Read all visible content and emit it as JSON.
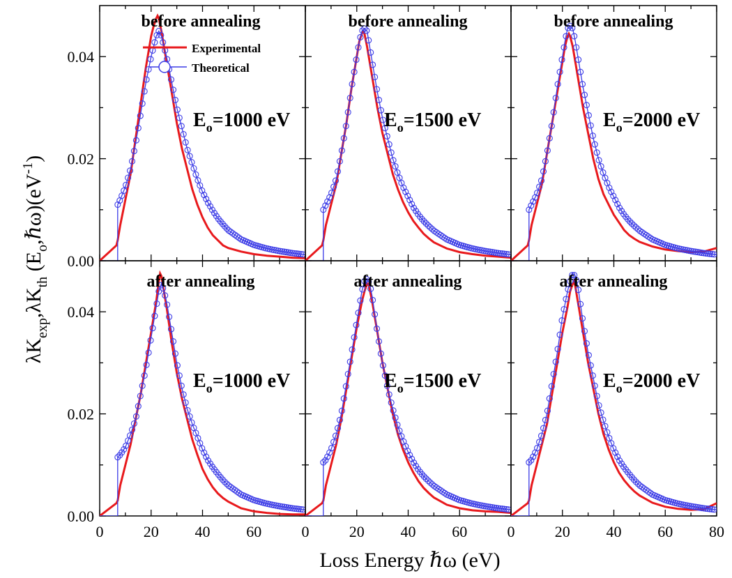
{
  "figure": {
    "xlabel": "Loss Energy ℏω (eV)",
    "ylabel_parts": [
      "λK",
      "exp",
      ",λK",
      "th",
      " (E",
      "o",
      ",ℏω)(eV",
      "-1",
      ")"
    ],
    "legend": {
      "experimental": "Experimental",
      "theoretical": "Theoretical"
    },
    "colors": {
      "experimental": "#e8191c",
      "theoretical": "#3a3ae6",
      "frame": "#000000"
    }
  },
  "chart_data": [
    {
      "type": "line",
      "row": "top",
      "annotation": "before annealing",
      "energy_label": "E",
      "energy_sub": "o",
      "energy_value": "=1000 eV",
      "xlim": [
        0,
        80
      ],
      "ylim": [
        0,
        0.05
      ],
      "xticks": [
        "0",
        "20",
        "40",
        "60"
      ],
      "yticks": [
        "0.00",
        "0.02",
        "0.04"
      ],
      "series": [
        {
          "name": "Experimental",
          "x": [
            0,
            6.5,
            7,
            8,
            10,
            12,
            14,
            16,
            18,
            20,
            21,
            22,
            22.5,
            23,
            24,
            26,
            28,
            30,
            32,
            34,
            36,
            38,
            40,
            42,
            44,
            46,
            48,
            50,
            55,
            60,
            65,
            70,
            75,
            80
          ],
          "y": [
            0.0,
            0.003,
            0.004,
            0.007,
            0.012,
            0.017,
            0.024,
            0.031,
            0.038,
            0.044,
            0.046,
            0.0475,
            0.048,
            0.0475,
            0.045,
            0.039,
            0.033,
            0.027,
            0.022,
            0.018,
            0.014,
            0.011,
            0.0085,
            0.0065,
            0.005,
            0.004,
            0.003,
            0.0025,
            0.0018,
            0.0013,
            0.001,
            0.0008,
            0.0006,
            0.0005
          ]
        },
        {
          "name": "Theoretical",
          "x": [
            7,
            8,
            10,
            12,
            14,
            16,
            18,
            20,
            21,
            22,
            23,
            24,
            25,
            26,
            28,
            30,
            32,
            34,
            36,
            38,
            40,
            42,
            44,
            46,
            48,
            50,
            55,
            60,
            65,
            70,
            75,
            80
          ],
          "y": [
            0.011,
            0.012,
            0.0145,
            0.018,
            0.023,
            0.029,
            0.035,
            0.04,
            0.042,
            0.044,
            0.045,
            0.044,
            0.042,
            0.04,
            0.035,
            0.03,
            0.026,
            0.022,
            0.019,
            0.016,
            0.0135,
            0.0115,
            0.0098,
            0.0083,
            0.0071,
            0.006,
            0.0042,
            0.0031,
            0.0024,
            0.0019,
            0.0015,
            0.0012
          ]
        }
      ]
    },
    {
      "type": "line",
      "row": "top",
      "annotation": "before annealing",
      "energy_label": "E",
      "energy_sub": "o",
      "energy_value": "=1500 eV",
      "xlim": [
        0,
        80
      ],
      "ylim": [
        0,
        0.05
      ],
      "xticks": [
        "0",
        "20",
        "40",
        "60"
      ],
      "yticks": [],
      "series": [
        {
          "name": "Experimental",
          "x": [
            0,
            6.5,
            7,
            8,
            10,
            12,
            14,
            16,
            18,
            20,
            21,
            22,
            22.5,
            23,
            24,
            26,
            28,
            30,
            32,
            34,
            36,
            38,
            40,
            42,
            44,
            46,
            48,
            50,
            55,
            60,
            65,
            70,
            75,
            80
          ],
          "y": [
            0.0,
            0.003,
            0.004,
            0.007,
            0.011,
            0.015,
            0.021,
            0.027,
            0.034,
            0.04,
            0.043,
            0.0445,
            0.045,
            0.0445,
            0.042,
            0.036,
            0.03,
            0.025,
            0.021,
            0.017,
            0.014,
            0.0115,
            0.0095,
            0.0078,
            0.0065,
            0.0053,
            0.0044,
            0.0036,
            0.0024,
            0.0017,
            0.0013,
            0.001,
            0.0008,
            0.0006
          ]
        },
        {
          "name": "Theoretical",
          "x": [
            7,
            8,
            10,
            12,
            14,
            16,
            18,
            20,
            21,
            22,
            23,
            24,
            25,
            26,
            28,
            30,
            32,
            34,
            36,
            38,
            40,
            42,
            44,
            46,
            48,
            50,
            55,
            60,
            65,
            70,
            75,
            80
          ],
          "y": [
            0.01,
            0.011,
            0.013,
            0.016,
            0.021,
            0.027,
            0.034,
            0.04,
            0.043,
            0.045,
            0.0455,
            0.045,
            0.042,
            0.039,
            0.033,
            0.028,
            0.024,
            0.02,
            0.017,
            0.0145,
            0.0125,
            0.0105,
            0.009,
            0.0078,
            0.0068,
            0.0059,
            0.0042,
            0.0031,
            0.0024,
            0.0019,
            0.0015,
            0.0012
          ]
        }
      ]
    },
    {
      "type": "line",
      "row": "top",
      "annotation": "before annealing",
      "energy_label": "E",
      "energy_sub": "o",
      "energy_value": "=2000 eV",
      "xlim": [
        0,
        80
      ],
      "ylim": [
        0,
        0.05
      ],
      "xticks": [
        "0",
        "20",
        "40",
        "60"
      ],
      "yticks": [],
      "series": [
        {
          "name": "Experimental",
          "x": [
            0,
            6.5,
            7,
            8,
            10,
            12,
            14,
            16,
            18,
            20,
            21,
            22,
            22.5,
            23,
            24,
            26,
            28,
            30,
            32,
            34,
            36,
            38,
            40,
            42,
            44,
            46,
            48,
            50,
            55,
            60,
            65,
            70,
            75,
            80
          ],
          "y": [
            0.0,
            0.003,
            0.004,
            0.007,
            0.011,
            0.015,
            0.021,
            0.027,
            0.033,
            0.039,
            0.042,
            0.044,
            0.0445,
            0.044,
            0.042,
            0.036,
            0.03,
            0.025,
            0.02,
            0.016,
            0.013,
            0.011,
            0.009,
            0.0075,
            0.006,
            0.005,
            0.0043,
            0.0037,
            0.0028,
            0.0022,
            0.0019,
            0.0017,
            0.0018,
            0.0025
          ]
        },
        {
          "name": "Theoretical",
          "x": [
            7,
            8,
            10,
            12,
            14,
            16,
            18,
            20,
            21,
            22,
            23,
            24,
            25,
            26,
            28,
            30,
            32,
            34,
            36,
            38,
            40,
            42,
            44,
            46,
            48,
            50,
            55,
            60,
            65,
            70,
            75,
            80
          ],
          "y": [
            0.01,
            0.011,
            0.013,
            0.016,
            0.021,
            0.027,
            0.034,
            0.04,
            0.043,
            0.0455,
            0.046,
            0.0455,
            0.043,
            0.04,
            0.034,
            0.029,
            0.024,
            0.02,
            0.017,
            0.0145,
            0.0125,
            0.0105,
            0.009,
            0.0078,
            0.0068,
            0.0059,
            0.0042,
            0.0031,
            0.0024,
            0.0019,
            0.0015,
            0.0012
          ]
        }
      ]
    },
    {
      "type": "line",
      "row": "bottom",
      "annotation": "after annealing",
      "energy_label": "E",
      "energy_sub": "o",
      "energy_value": "=1000 eV",
      "xlim": [
        0,
        80
      ],
      "ylim": [
        0,
        0.05
      ],
      "xticks": [
        "0",
        "20",
        "40",
        "60"
      ],
      "yticks": [
        "0.00",
        "0.02",
        "0.04"
      ],
      "series": [
        {
          "name": "Experimental",
          "x": [
            0,
            6.5,
            7,
            8,
            10,
            12,
            14,
            16,
            18,
            20,
            21,
            22,
            23,
            23.5,
            24,
            25,
            26,
            28,
            30,
            32,
            34,
            36,
            38,
            40,
            42,
            44,
            46,
            48,
            50,
            55,
            60,
            65,
            70,
            75,
            80
          ],
          "y": [
            0.0,
            0.0025,
            0.003,
            0.006,
            0.01,
            0.014,
            0.019,
            0.024,
            0.03,
            0.036,
            0.039,
            0.042,
            0.046,
            0.0475,
            0.047,
            0.044,
            0.041,
            0.034,
            0.028,
            0.023,
            0.019,
            0.015,
            0.012,
            0.0092,
            0.0072,
            0.0056,
            0.0044,
            0.0035,
            0.0028,
            0.0015,
            0.0009,
            0.0006,
            0.0004,
            0.0003,
            0.0003
          ]
        },
        {
          "name": "Theoretical",
          "x": [
            7,
            8,
            10,
            12,
            14,
            16,
            18,
            20,
            22,
            23,
            24,
            25,
            26,
            28,
            30,
            32,
            34,
            36,
            38,
            40,
            42,
            44,
            46,
            48,
            50,
            55,
            60,
            65,
            70,
            75,
            80
          ],
          "y": [
            0.0115,
            0.012,
            0.0135,
            0.016,
            0.019,
            0.024,
            0.029,
            0.035,
            0.041,
            0.044,
            0.0455,
            0.044,
            0.042,
            0.036,
            0.03,
            0.025,
            0.021,
            0.018,
            0.0155,
            0.013,
            0.011,
            0.0095,
            0.0082,
            0.007,
            0.006,
            0.0042,
            0.0031,
            0.0024,
            0.0019,
            0.0015,
            0.0012
          ]
        }
      ]
    },
    {
      "type": "line",
      "row": "bottom",
      "annotation": "after annealing",
      "energy_label": "E",
      "energy_sub": "o",
      "energy_value": "=1500 eV",
      "xlim": [
        0,
        80
      ],
      "ylim": [
        0,
        0.05
      ],
      "xticks": [
        "0",
        "20",
        "40",
        "60"
      ],
      "yticks": [],
      "series": [
        {
          "name": "Experimental",
          "x": [
            0,
            6.5,
            7,
            8,
            10,
            12,
            14,
            16,
            18,
            20,
            22,
            23,
            24,
            24.5,
            25,
            26,
            28,
            30,
            32,
            34,
            36,
            38,
            40,
            42,
            44,
            46,
            48,
            50,
            55,
            60,
            65,
            70,
            75,
            80
          ],
          "y": [
            0.0,
            0.0025,
            0.003,
            0.006,
            0.01,
            0.014,
            0.019,
            0.025,
            0.031,
            0.037,
            0.042,
            0.044,
            0.0455,
            0.0455,
            0.0445,
            0.042,
            0.036,
            0.03,
            0.025,
            0.02,
            0.016,
            0.013,
            0.0105,
            0.0085,
            0.0068,
            0.0055,
            0.0045,
            0.0036,
            0.0022,
            0.0015,
            0.0011,
            0.0009,
            0.0008,
            0.0006
          ]
        },
        {
          "name": "Theoretical",
          "x": [
            7,
            8,
            10,
            12,
            14,
            16,
            18,
            20,
            22,
            23,
            24,
            25,
            26,
            28,
            30,
            32,
            34,
            36,
            38,
            40,
            42,
            44,
            46,
            48,
            50,
            55,
            60,
            65,
            70,
            75,
            80
          ],
          "y": [
            0.0105,
            0.011,
            0.013,
            0.016,
            0.02,
            0.026,
            0.032,
            0.038,
            0.044,
            0.046,
            0.0465,
            0.0455,
            0.043,
            0.036,
            0.03,
            0.025,
            0.021,
            0.0175,
            0.0148,
            0.0125,
            0.0106,
            0.009,
            0.0078,
            0.0068,
            0.0059,
            0.0042,
            0.0031,
            0.0024,
            0.0019,
            0.0015,
            0.0012
          ]
        }
      ]
    },
    {
      "type": "line",
      "row": "bottom",
      "annotation": "after annealing",
      "energy_label": "E",
      "energy_sub": "o",
      "energy_value": "=2000 eV",
      "xlim": [
        0,
        80
      ],
      "ylim": [
        0,
        0.05
      ],
      "xticks": [
        "0",
        "20",
        "40",
        "60",
        "80"
      ],
      "yticks": [],
      "series": [
        {
          "name": "Experimental",
          "x": [
            0,
            6.5,
            7,
            8,
            10,
            12,
            14,
            16,
            18,
            20,
            22,
            23,
            24,
            24.5,
            25,
            26,
            28,
            30,
            32,
            34,
            36,
            38,
            40,
            42,
            44,
            46,
            48,
            50,
            55,
            60,
            65,
            70,
            75,
            80
          ],
          "y": [
            0.0,
            0.0025,
            0.003,
            0.006,
            0.01,
            0.014,
            0.018,
            0.024,
            0.03,
            0.036,
            0.041,
            0.044,
            0.0455,
            0.046,
            0.045,
            0.042,
            0.036,
            0.03,
            0.025,
            0.02,
            0.016,
            0.013,
            0.0105,
            0.0085,
            0.007,
            0.0058,
            0.0048,
            0.004,
            0.0026,
            0.0018,
            0.0014,
            0.0012,
            0.0013,
            0.0025
          ]
        },
        {
          "name": "Theoretical",
          "x": [
            7,
            8,
            10,
            12,
            14,
            16,
            18,
            20,
            22,
            23,
            24,
            25,
            26,
            28,
            30,
            32,
            34,
            36,
            38,
            40,
            42,
            44,
            46,
            48,
            50,
            55,
            60,
            65,
            70,
            75,
            80
          ],
          "y": [
            0.0105,
            0.011,
            0.013,
            0.016,
            0.02,
            0.026,
            0.032,
            0.039,
            0.044,
            0.046,
            0.0475,
            0.047,
            0.045,
            0.038,
            0.032,
            0.027,
            0.022,
            0.0185,
            0.0155,
            0.013,
            0.011,
            0.0095,
            0.0082,
            0.007,
            0.006,
            0.0042,
            0.0031,
            0.0024,
            0.0019,
            0.0015,
            0.0012
          ]
        }
      ]
    }
  ]
}
